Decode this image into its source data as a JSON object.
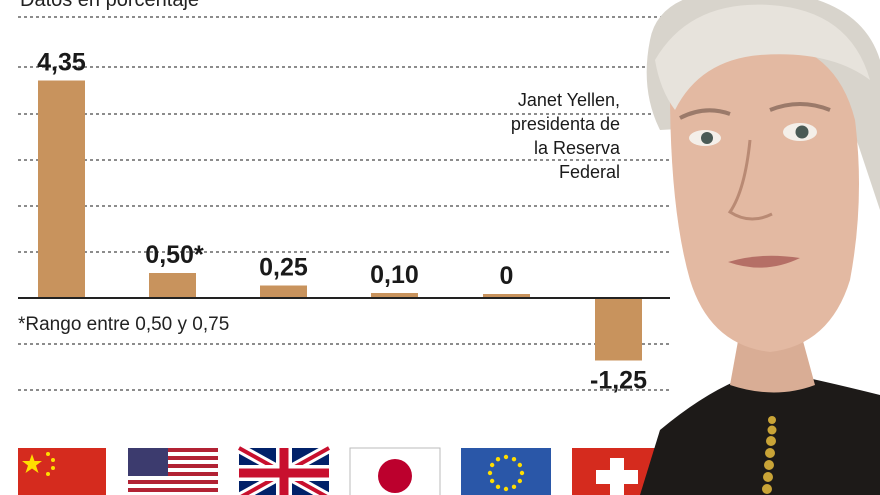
{
  "subtitle": "Datos en porcentaje",
  "footnote": "*Rango entre 0,50 y 0,75",
  "caption": [
    "Janet Yellen,",
    "presidenta de",
    "la Reserva",
    "Federal"
  ],
  "colors": {
    "bar": "#c8935d",
    "grid": "#666666",
    "text": "#1a1a1a"
  },
  "chart_data": {
    "type": "bar",
    "categories": [
      "China",
      "Estados Unidos",
      "Reino Unido",
      "Japón",
      "Zona euro",
      "Suiza"
    ],
    "values": [
      4.35,
      0.5,
      0.25,
      0.1,
      0,
      -1.25
    ],
    "value_labels": [
      "4,35",
      "0,50*",
      "0,25",
      "0,10",
      "0",
      "-1,25"
    ],
    "category_icons": [
      "china-flag-icon",
      "usa-flag-icon",
      "uk-flag-icon",
      "japan-flag-icon",
      "eu-flag-icon",
      "swiss-flag-icon"
    ],
    "ylim": [
      -1.5,
      4.9
    ],
    "grid": true
  }
}
